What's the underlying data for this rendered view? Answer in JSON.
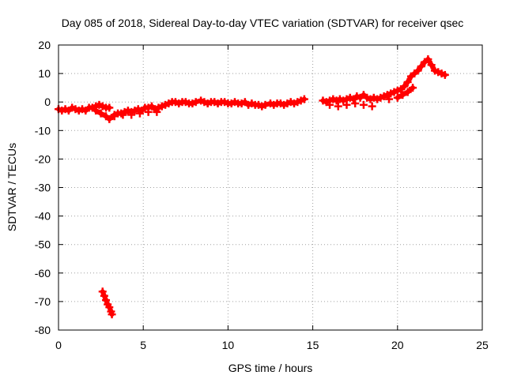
{
  "chart_data": {
    "type": "scatter",
    "title": "Day 085 of 2018, Sidereal Day-to-day VTEC variation (SDTVAR) for receiver qsec",
    "xlabel": "GPS time / hours",
    "ylabel": "SDTVAR / TECUs",
    "xlim": [
      0,
      25
    ],
    "ylim": [
      -80,
      20
    ],
    "xticks": [
      0,
      5,
      10,
      15,
      20,
      25
    ],
    "yticks": [
      20,
      10,
      0,
      -10,
      -20,
      -30,
      -40,
      -50,
      -60,
      -70,
      -80
    ],
    "grid": true,
    "marker": "plus",
    "color": "#ff0000",
    "series": [
      {
        "name": "SDTVAR",
        "x": [
          0.0,
          0.2,
          0.4,
          0.6,
          0.8,
          1.0,
          1.2,
          1.4,
          1.6,
          1.8,
          2.0,
          2.2,
          2.4,
          2.6,
          2.8,
          3.0,
          2.2,
          2.5,
          2.8,
          3.0,
          3.3,
          3.5,
          3.7,
          3.9,
          4.1,
          4.3,
          4.5,
          4.7,
          4.9,
          5.1,
          5.3,
          5.5,
          5.7,
          5.9,
          6.1,
          6.3,
          6.5,
          6.7,
          6.9,
          7.1,
          7.3,
          7.5,
          7.7,
          7.9,
          8.1,
          8.4,
          8.6,
          8.8,
          9.0,
          9.2,
          9.4,
          9.6,
          9.8,
          10.0,
          10.2,
          10.4,
          10.6,
          10.8,
          11.0,
          11.2,
          11.4,
          11.6,
          11.8,
          12.0,
          12.2,
          12.5,
          12.7,
          12.9,
          13.1,
          13.3,
          13.5,
          13.7,
          13.9,
          14.1,
          14.3,
          14.5,
          15.6,
          15.8,
          16.0,
          16.2,
          16.4,
          16.6,
          16.8,
          17.0,
          17.2,
          17.4,
          17.6,
          17.8,
          18.0,
          18.2,
          18.4,
          18.6,
          18.8,
          19.0,
          19.2,
          19.4,
          19.6,
          19.8,
          20.0,
          20.2,
          20.4,
          20.6,
          20.8,
          21.0,
          21.2,
          21.4,
          21.6,
          21.8,
          22.0,
          22.2,
          22.4,
          22.6,
          22.8,
          16.0,
          16.5,
          17.0,
          17.5,
          18.0,
          18.5,
          19.5,
          20.0,
          20.3,
          20.6,
          20.9,
          3.3,
          3.8,
          4.3,
          4.8,
          5.3,
          5.8,
          2.6,
          2.7,
          2.8,
          2.9,
          3.0,
          3.1,
          3.15
        ],
        "y": [
          -2.5,
          -3.0,
          -2.5,
          -3.0,
          -2.0,
          -2.5,
          -3.0,
          -2.5,
          -3.0,
          -2.0,
          -2.0,
          -1.5,
          -1.0,
          -1.5,
          -2.0,
          -2.0,
          -3.0,
          -4.0,
          -5.0,
          -6.0,
          -4.5,
          -4.0,
          -4.0,
          -3.5,
          -3.0,
          -3.5,
          -3.0,
          -2.5,
          -3.0,
          -2.0,
          -2.0,
          -1.5,
          -2.5,
          -2.0,
          -1.5,
          -1.0,
          -0.5,
          0.0,
          0.0,
          -0.5,
          0.0,
          0.0,
          -0.5,
          -0.5,
          0.0,
          0.5,
          0.0,
          -0.5,
          0.0,
          0.0,
          -0.5,
          0.0,
          0.0,
          -0.5,
          -0.5,
          0.0,
          -0.5,
          -0.5,
          0.0,
          -1.0,
          -0.5,
          -1.0,
          -1.0,
          -1.5,
          -1.0,
          -0.5,
          -1.0,
          -0.5,
          -0.5,
          -1.0,
          -0.5,
          0.0,
          -0.5,
          0.0,
          0.5,
          1.0,
          0.5,
          0.0,
          0.5,
          1.0,
          0.5,
          1.0,
          0.5,
          1.0,
          1.5,
          1.0,
          2.0,
          1.5,
          2.5,
          1.5,
          1.0,
          1.5,
          1.0,
          1.5,
          2.0,
          2.5,
          3.0,
          3.5,
          4.0,
          4.5,
          5.5,
          7.0,
          9.0,
          10.0,
          11.0,
          12.5,
          14.0,
          15.0,
          13.0,
          11.0,
          10.5,
          10.0,
          9.5,
          -1.0,
          -1.5,
          -1.0,
          -0.5,
          -1.0,
          -1.5,
          1.0,
          1.5,
          2.5,
          3.5,
          5.0,
          -5.0,
          -4.5,
          -4.5,
          -4.0,
          -3.5,
          -3.5,
          -66.5,
          -68.0,
          -69.5,
          -71.0,
          -72.0,
          -73.5,
          -74.5
        ]
      }
    ]
  }
}
